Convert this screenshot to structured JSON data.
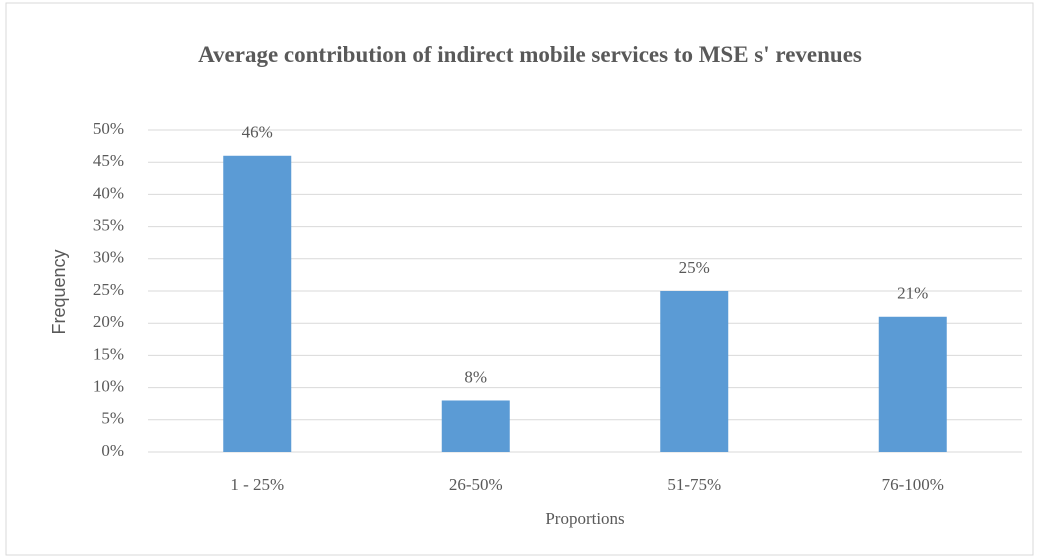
{
  "chart_data": {
    "type": "bar",
    "title": "Average contribution of indirect mobile services to MSE s' revenues",
    "x_label": "Proportions",
    "y_label": "Frequency",
    "categories": [
      "1 - 25%",
      "26-50%",
      "51-75%",
      "76-100%"
    ],
    "values": [
      46,
      8,
      25,
      21
    ],
    "value_labels": [
      "46%",
      "8%",
      "25%",
      "21%"
    ],
    "color": "#5b9bd5",
    "ylim": [
      0,
      50
    ],
    "yticks": [
      {
        "value": 0,
        "label": "0%"
      },
      {
        "value": 5,
        "label": "5%"
      },
      {
        "value": 10,
        "label": "10%"
      },
      {
        "value": 15,
        "label": "15%"
      },
      {
        "value": 20,
        "label": "20%"
      },
      {
        "value": 25,
        "label": "25%"
      },
      {
        "value": 30,
        "label": "30%"
      },
      {
        "value": 35,
        "label": "35%"
      },
      {
        "value": 40,
        "label": "40%"
      },
      {
        "value": 45,
        "label": "45%"
      },
      {
        "value": 50,
        "label": "50%"
      }
    ],
    "grid": true
  }
}
